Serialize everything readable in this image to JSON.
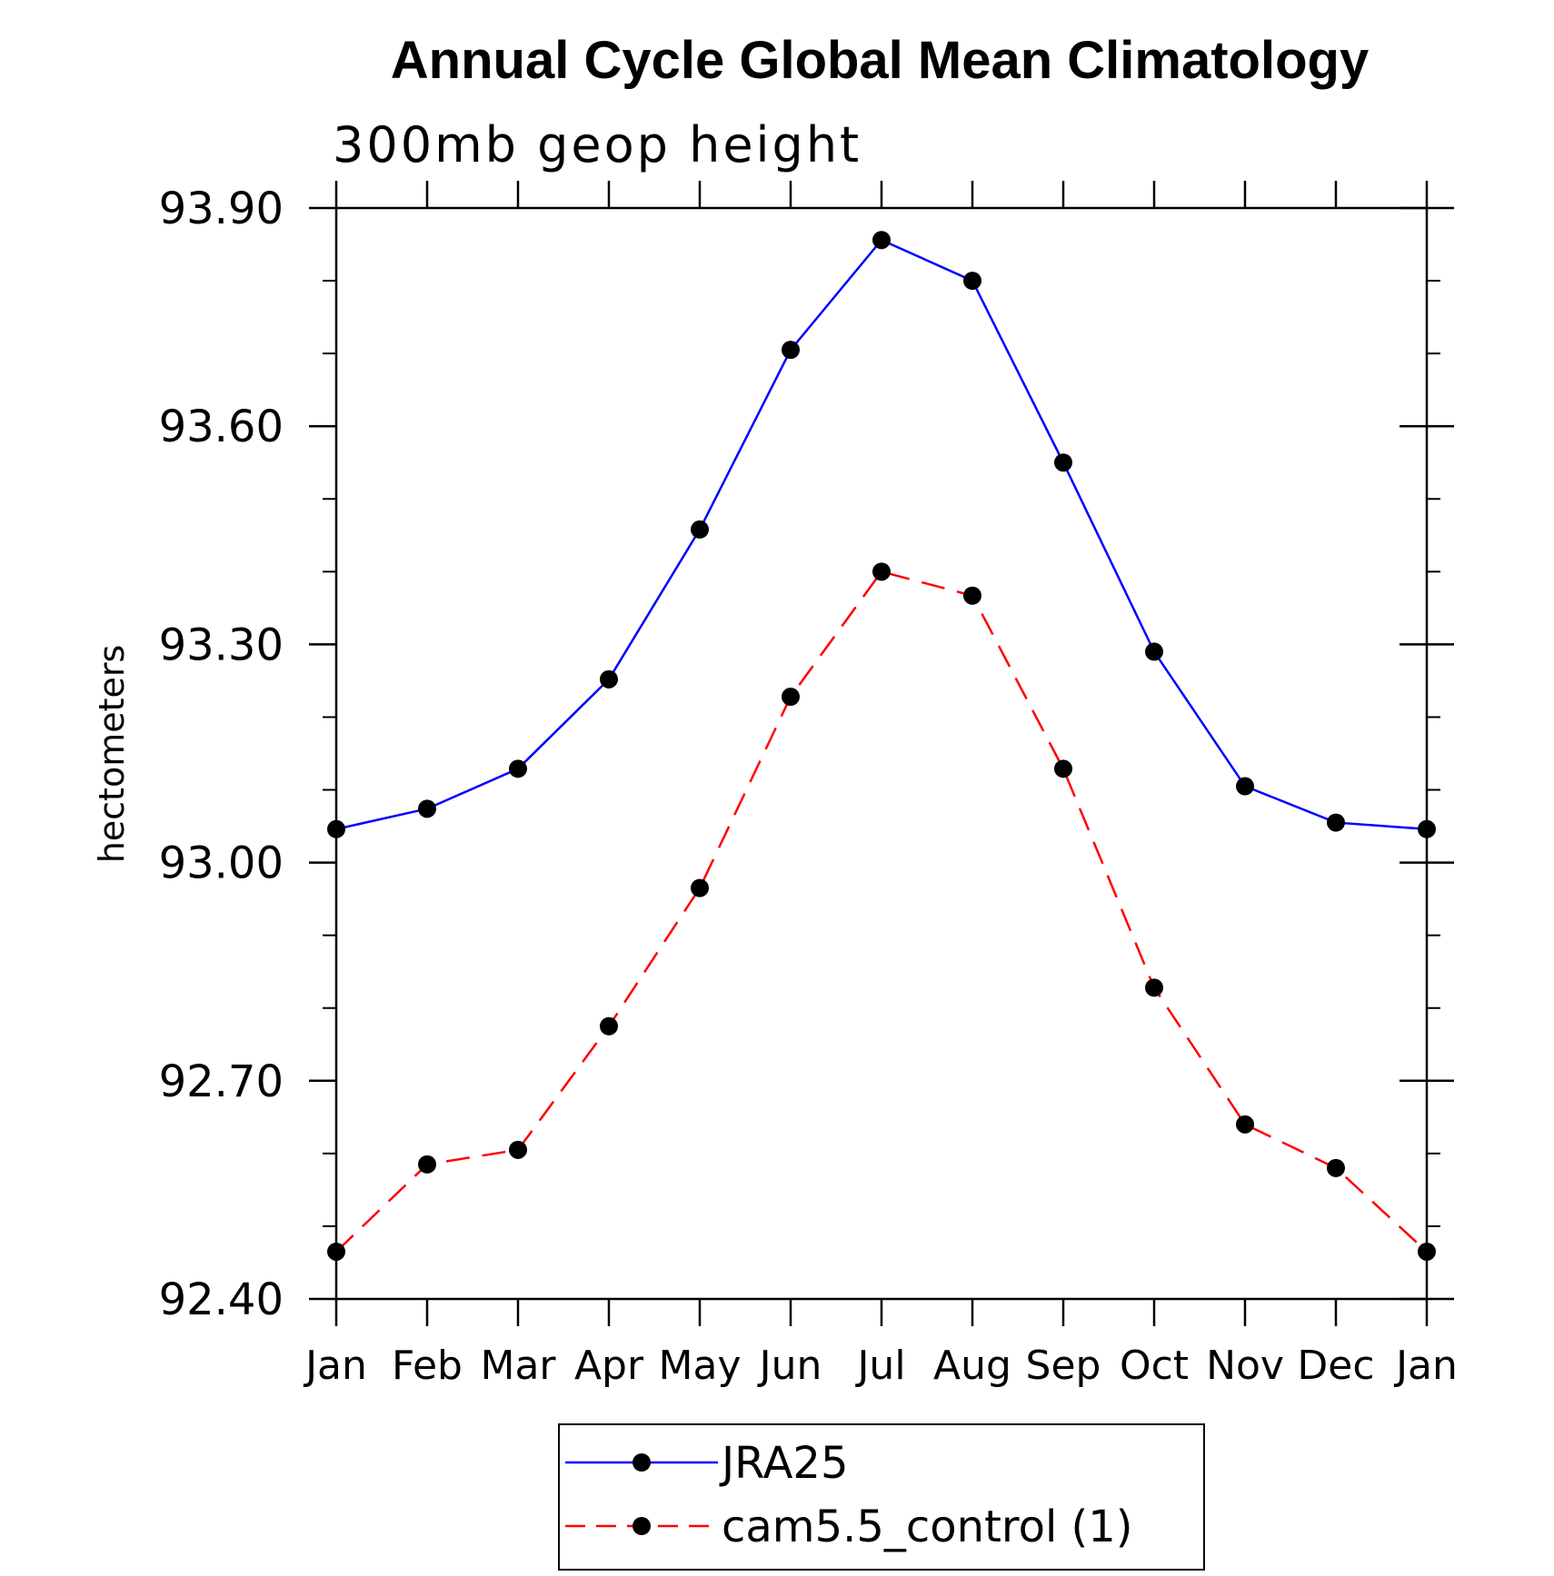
{
  "chart_data": {
    "type": "line",
    "title": "Annual Cycle Global Mean Climatology",
    "subtitle": "300mb geop height",
    "xlabel": "",
    "ylabel": "hectometers",
    "categories": [
      "Jan",
      "Feb",
      "Mar",
      "Apr",
      "May",
      "Jun",
      "Jul",
      "Aug",
      "Sep",
      "Oct",
      "Nov",
      "Dec",
      "Jan"
    ],
    "ylim": [
      92.4,
      93.9
    ],
    "yticks": [
      "92.40",
      "92.70",
      "93.00",
      "93.30",
      "93.60",
      "93.90"
    ],
    "series": [
      {
        "name": "JRA25",
        "color": "#0000ff",
        "style": "solid",
        "marker": "circle",
        "values": [
          93.046,
          93.074,
          93.129,
          93.252,
          93.458,
          93.705,
          93.856,
          93.8,
          93.55,
          93.29,
          93.105,
          93.055,
          93.046
        ]
      },
      {
        "name": "cam5.5_control (1)",
        "color": "#ff0000",
        "style": "dashed",
        "marker": "circle",
        "values": [
          92.465,
          92.585,
          92.605,
          92.775,
          92.965,
          93.228,
          93.4,
          93.367,
          93.129,
          92.828,
          92.64,
          92.58,
          92.465
        ]
      }
    ],
    "legend_position": "bottom"
  }
}
